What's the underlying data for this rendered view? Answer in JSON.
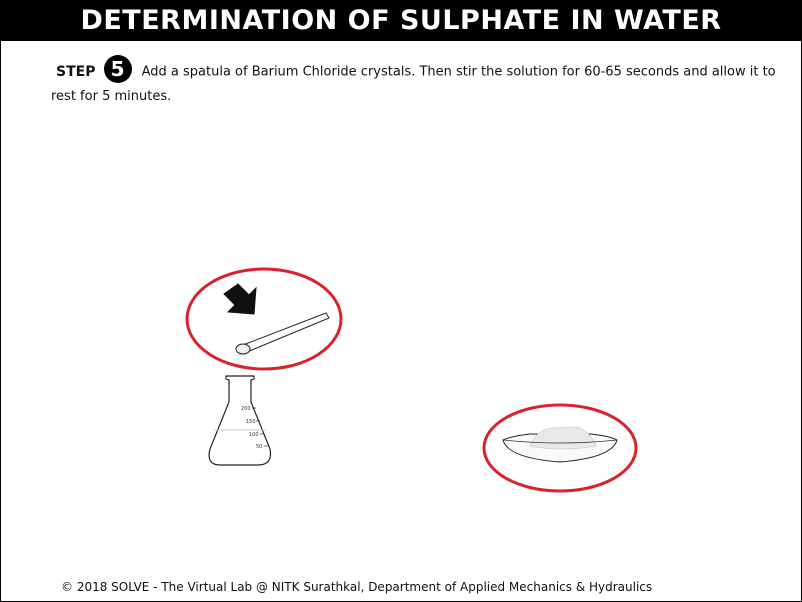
{
  "header": {
    "title": "DETERMINATION OF SULPHATE IN WATER"
  },
  "step": {
    "label": "STEP",
    "number": "5",
    "text": "Add a spatula of Barium Chloride crystals. Then stir the solution for 60-65 seconds and allow it to rest for 5 minutes."
  },
  "flask": {
    "marks": [
      "200",
      "150",
      "100",
      "50"
    ]
  },
  "colors": {
    "highlight": "#d8232a",
    "title_bg": "#000000"
  },
  "footer": {
    "text": "© 2018 SOLVE - The Virtual Lab @ NITK Surathkal, Department of Applied Mechanics & Hydraulics"
  }
}
